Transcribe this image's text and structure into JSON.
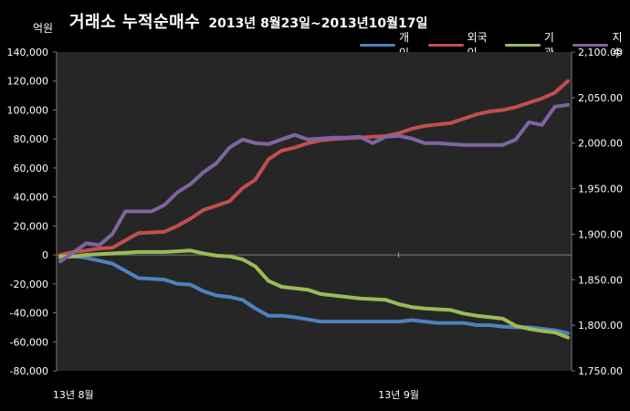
{
  "title": "거래소 누적순매수",
  "subtitle": "2013년 8월23일~2013년10월17일",
  "unit_label": "억원",
  "chart_data": {
    "type": "line",
    "title": "거래소 누적순매수 2013년 8월23일~2013년10월17일",
    "ylabel_left": "억원",
    "ylim_left": [
      -80000,
      140000
    ],
    "yticks_left": [
      "140,000",
      "120,000",
      "100,000",
      "80,000",
      "60,000",
      "40,000",
      "20,000",
      "0",
      "-20,000",
      "-40,000",
      "-60,000",
      "-80,000"
    ],
    "ylim_right": [
      1750,
      2100
    ],
    "yticks_right": [
      "2,100.00",
      "2,050.00",
      "2,000.00",
      "1,950.00",
      "1,900.00",
      "1,850.00",
      "1,800.00",
      "1,750.00"
    ],
    "x_tick_labels": [
      "13년 8월",
      "13년 9월"
    ],
    "n_points": 40,
    "x_tick_positions": [
      1,
      26
    ],
    "legend_position": "top-right",
    "grid": false,
    "series": [
      {
        "name": "개인",
        "axis": "left",
        "color": "#4F81BD",
        "values": [
          -2000,
          -1000,
          -2000,
          -4000,
          -6000,
          -11000,
          -16000,
          -16500,
          -17000,
          -20000,
          -20500,
          -25000,
          -28000,
          -29000,
          -31000,
          -37000,
          -42000,
          -42000,
          -43000,
          -44500,
          -46000,
          -46000,
          -46000,
          -46000,
          -46000,
          -46000,
          -46000,
          -45000,
          -46000,
          -47000,
          -47000,
          -47000,
          -48500,
          -48500,
          -49500,
          -50000,
          -50000,
          -51000,
          -52000,
          -54000
        ]
      },
      {
        "name": "외국인",
        "axis": "left",
        "color": "#C0504D",
        "values": [
          0,
          2000,
          3000,
          4500,
          5000,
          10000,
          15000,
          15500,
          16000,
          20000,
          25000,
          31000,
          34000,
          37000,
          46000,
          52000,
          66000,
          72000,
          74000,
          77000,
          79000,
          80000,
          80500,
          81000,
          81500,
          82000,
          84000,
          87000,
          89000,
          90000,
          91000,
          94000,
          97000,
          99000,
          100000,
          102000,
          105000,
          108000,
          112000,
          120000
        ]
      },
      {
        "name": "기관",
        "axis": "left",
        "color": "#9BBB59",
        "values": [
          -1000,
          -1000,
          0,
          500,
          1000,
          1500,
          2000,
          2000,
          2000,
          2500,
          3000,
          1000,
          -500,
          -1000,
          -3000,
          -8000,
          -18000,
          -22000,
          -23000,
          -24000,
          -27000,
          -28000,
          -29000,
          -30000,
          -30500,
          -31000,
          -34000,
          -36000,
          -37000,
          -37500,
          -38000,
          -40500,
          -42000,
          -43000,
          -44000,
          -49000,
          -51000,
          -52500,
          -53500,
          -57000
        ]
      },
      {
        "name": "지수",
        "axis": "right",
        "color": "#8064A2",
        "values": [
          1870,
          1880,
          1890,
          1888,
          1900,
          1925,
          1925,
          1925,
          1932,
          1946,
          1955,
          1968,
          1978,
          1995,
          2004,
          2000,
          1999,
          2004,
          2009,
          2004,
          2005,
          2006,
          2006,
          2007,
          2000,
          2007,
          2008,
          2005,
          2000,
          2000,
          1999,
          1998,
          1998,
          1998,
          1998,
          2004,
          2023,
          2020,
          2040,
          2042
        ]
      }
    ]
  }
}
